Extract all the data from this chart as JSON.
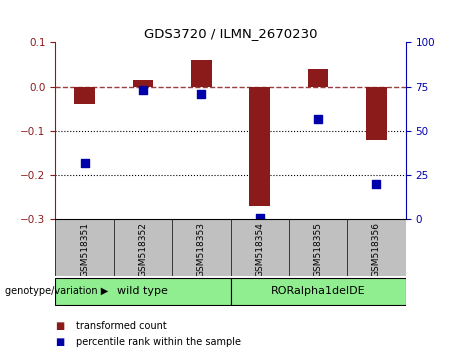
{
  "title": "GDS3720 / ILMN_2670230",
  "samples": [
    "GSM518351",
    "GSM518352",
    "GSM518353",
    "GSM518354",
    "GSM518355",
    "GSM518356"
  ],
  "bar_values": [
    -0.04,
    0.015,
    0.06,
    -0.27,
    0.04,
    -0.12
  ],
  "percentile_values": [
    32,
    73,
    71,
    1,
    57,
    20
  ],
  "bar_color": "#8B1A1A",
  "dot_color": "#0000AA",
  "ylim_left": [
    -0.3,
    0.1
  ],
  "ylim_right": [
    0,
    100
  ],
  "yticks_left": [
    -0.3,
    -0.2,
    -0.1,
    0.0,
    0.1
  ],
  "yticks_right": [
    0,
    25,
    50,
    75,
    100
  ],
  "groups": [
    {
      "label": "wild type",
      "indices": [
        0,
        1,
        2
      ],
      "color": "#90EE90"
    },
    {
      "label": "RORalpha1delDE",
      "indices": [
        3,
        4,
        5
      ],
      "color": "#90EE90"
    }
  ],
  "group_label_prefix": "genotype/variation",
  "legend_items": [
    {
      "label": "transformed count",
      "color": "#8B1A1A"
    },
    {
      "label": "percentile rank within the sample",
      "color": "#0000AA"
    }
  ],
  "hline_y": 0.0,
  "dotted_lines": [
    -0.1,
    -0.2
  ],
  "bar_width": 0.35,
  "background_color": "#ffffff",
  "tick_label_area_color": "#C0C0C0",
  "group_area_color": "#90EE90"
}
